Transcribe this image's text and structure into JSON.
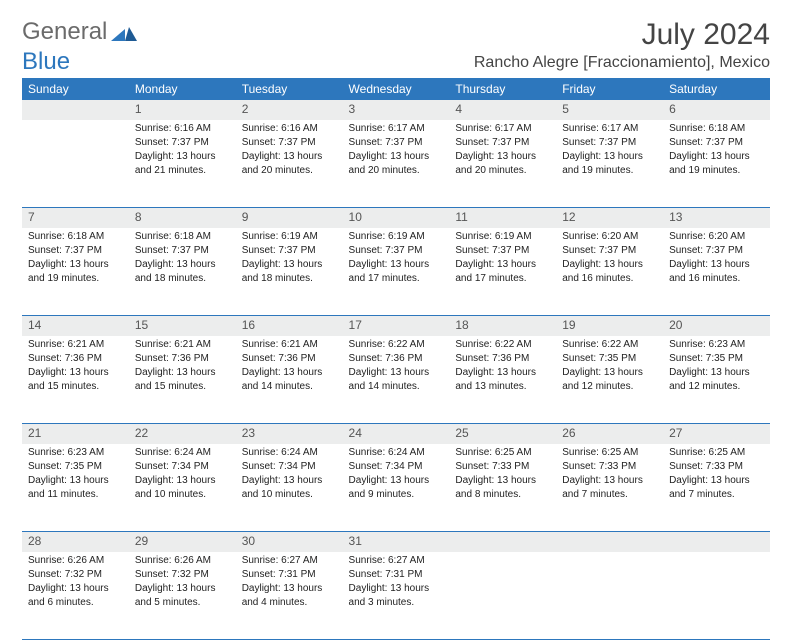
{
  "brand": {
    "part1": "General",
    "part2": "Blue"
  },
  "title": "July 2024",
  "location": "Rancho Alegre [Fraccionamiento], Mexico",
  "colors": {
    "header_bg": "#2d77bd",
    "header_text": "#ffffff",
    "daynum_bg": "#eceded",
    "daynum_text": "#555555",
    "rule": "#2d77bd",
    "body_text": "#222222",
    "brand_gray": "#6b6b6b",
    "brand_blue": "#2d77bd"
  },
  "fonts": {
    "title_size": 30,
    "location_size": 16,
    "header_size": 12,
    "daynum_size": 12,
    "cell_size": 10
  },
  "day_names": [
    "Sunday",
    "Monday",
    "Tuesday",
    "Wednesday",
    "Thursday",
    "Friday",
    "Saturday"
  ],
  "weeks": [
    {
      "nums": [
        "",
        "1",
        "2",
        "3",
        "4",
        "5",
        "6"
      ],
      "cells": [
        null,
        {
          "sunrise": "Sunrise: 6:16 AM",
          "sunset": "Sunset: 7:37 PM",
          "day1": "Daylight: 13 hours",
          "day2": "and 21 minutes."
        },
        {
          "sunrise": "Sunrise: 6:16 AM",
          "sunset": "Sunset: 7:37 PM",
          "day1": "Daylight: 13 hours",
          "day2": "and 20 minutes."
        },
        {
          "sunrise": "Sunrise: 6:17 AM",
          "sunset": "Sunset: 7:37 PM",
          "day1": "Daylight: 13 hours",
          "day2": "and 20 minutes."
        },
        {
          "sunrise": "Sunrise: 6:17 AM",
          "sunset": "Sunset: 7:37 PM",
          "day1": "Daylight: 13 hours",
          "day2": "and 20 minutes."
        },
        {
          "sunrise": "Sunrise: 6:17 AM",
          "sunset": "Sunset: 7:37 PM",
          "day1": "Daylight: 13 hours",
          "day2": "and 19 minutes."
        },
        {
          "sunrise": "Sunrise: 6:18 AM",
          "sunset": "Sunset: 7:37 PM",
          "day1": "Daylight: 13 hours",
          "day2": "and 19 minutes."
        }
      ]
    },
    {
      "nums": [
        "7",
        "8",
        "9",
        "10",
        "11",
        "12",
        "13"
      ],
      "cells": [
        {
          "sunrise": "Sunrise: 6:18 AM",
          "sunset": "Sunset: 7:37 PM",
          "day1": "Daylight: 13 hours",
          "day2": "and 19 minutes."
        },
        {
          "sunrise": "Sunrise: 6:18 AM",
          "sunset": "Sunset: 7:37 PM",
          "day1": "Daylight: 13 hours",
          "day2": "and 18 minutes."
        },
        {
          "sunrise": "Sunrise: 6:19 AM",
          "sunset": "Sunset: 7:37 PM",
          "day1": "Daylight: 13 hours",
          "day2": "and 18 minutes."
        },
        {
          "sunrise": "Sunrise: 6:19 AM",
          "sunset": "Sunset: 7:37 PM",
          "day1": "Daylight: 13 hours",
          "day2": "and 17 minutes."
        },
        {
          "sunrise": "Sunrise: 6:19 AM",
          "sunset": "Sunset: 7:37 PM",
          "day1": "Daylight: 13 hours",
          "day2": "and 17 minutes."
        },
        {
          "sunrise": "Sunrise: 6:20 AM",
          "sunset": "Sunset: 7:37 PM",
          "day1": "Daylight: 13 hours",
          "day2": "and 16 minutes."
        },
        {
          "sunrise": "Sunrise: 6:20 AM",
          "sunset": "Sunset: 7:37 PM",
          "day1": "Daylight: 13 hours",
          "day2": "and 16 minutes."
        }
      ]
    },
    {
      "nums": [
        "14",
        "15",
        "16",
        "17",
        "18",
        "19",
        "20"
      ],
      "cells": [
        {
          "sunrise": "Sunrise: 6:21 AM",
          "sunset": "Sunset: 7:36 PM",
          "day1": "Daylight: 13 hours",
          "day2": "and 15 minutes."
        },
        {
          "sunrise": "Sunrise: 6:21 AM",
          "sunset": "Sunset: 7:36 PM",
          "day1": "Daylight: 13 hours",
          "day2": "and 15 minutes."
        },
        {
          "sunrise": "Sunrise: 6:21 AM",
          "sunset": "Sunset: 7:36 PM",
          "day1": "Daylight: 13 hours",
          "day2": "and 14 minutes."
        },
        {
          "sunrise": "Sunrise: 6:22 AM",
          "sunset": "Sunset: 7:36 PM",
          "day1": "Daylight: 13 hours",
          "day2": "and 14 minutes."
        },
        {
          "sunrise": "Sunrise: 6:22 AM",
          "sunset": "Sunset: 7:36 PM",
          "day1": "Daylight: 13 hours",
          "day2": "and 13 minutes."
        },
        {
          "sunrise": "Sunrise: 6:22 AM",
          "sunset": "Sunset: 7:35 PM",
          "day1": "Daylight: 13 hours",
          "day2": "and 12 minutes."
        },
        {
          "sunrise": "Sunrise: 6:23 AM",
          "sunset": "Sunset: 7:35 PM",
          "day1": "Daylight: 13 hours",
          "day2": "and 12 minutes."
        }
      ]
    },
    {
      "nums": [
        "21",
        "22",
        "23",
        "24",
        "25",
        "26",
        "27"
      ],
      "cells": [
        {
          "sunrise": "Sunrise: 6:23 AM",
          "sunset": "Sunset: 7:35 PM",
          "day1": "Daylight: 13 hours",
          "day2": "and 11 minutes."
        },
        {
          "sunrise": "Sunrise: 6:24 AM",
          "sunset": "Sunset: 7:34 PM",
          "day1": "Daylight: 13 hours",
          "day2": "and 10 minutes."
        },
        {
          "sunrise": "Sunrise: 6:24 AM",
          "sunset": "Sunset: 7:34 PM",
          "day1": "Daylight: 13 hours",
          "day2": "and 10 minutes."
        },
        {
          "sunrise": "Sunrise: 6:24 AM",
          "sunset": "Sunset: 7:34 PM",
          "day1": "Daylight: 13 hours",
          "day2": "and 9 minutes."
        },
        {
          "sunrise": "Sunrise: 6:25 AM",
          "sunset": "Sunset: 7:33 PM",
          "day1": "Daylight: 13 hours",
          "day2": "and 8 minutes."
        },
        {
          "sunrise": "Sunrise: 6:25 AM",
          "sunset": "Sunset: 7:33 PM",
          "day1": "Daylight: 13 hours",
          "day2": "and 7 minutes."
        },
        {
          "sunrise": "Sunrise: 6:25 AM",
          "sunset": "Sunset: 7:33 PM",
          "day1": "Daylight: 13 hours",
          "day2": "and 7 minutes."
        }
      ]
    },
    {
      "nums": [
        "28",
        "29",
        "30",
        "31",
        "",
        "",
        ""
      ],
      "cells": [
        {
          "sunrise": "Sunrise: 6:26 AM",
          "sunset": "Sunset: 7:32 PM",
          "day1": "Daylight: 13 hours",
          "day2": "and 6 minutes."
        },
        {
          "sunrise": "Sunrise: 6:26 AM",
          "sunset": "Sunset: 7:32 PM",
          "day1": "Daylight: 13 hours",
          "day2": "and 5 minutes."
        },
        {
          "sunrise": "Sunrise: 6:27 AM",
          "sunset": "Sunset: 7:31 PM",
          "day1": "Daylight: 13 hours",
          "day2": "and 4 minutes."
        },
        {
          "sunrise": "Sunrise: 6:27 AM",
          "sunset": "Sunset: 7:31 PM",
          "day1": "Daylight: 13 hours",
          "day2": "and 3 minutes."
        },
        null,
        null,
        null
      ]
    }
  ]
}
